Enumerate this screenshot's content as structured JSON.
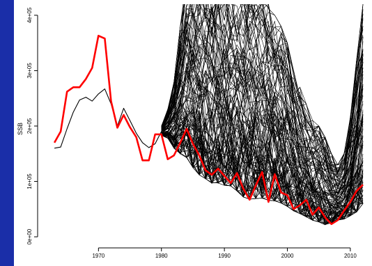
{
  "chart_data": {
    "type": "line",
    "title": "",
    "xlabel": "",
    "ylabel": "SSB",
    "xlim": [
      1961,
      2013
    ],
    "ylim": [
      -15000,
      420000
    ],
    "x_ticks": [
      1970,
      1980,
      1990,
      2000,
      2010
    ],
    "x_tick_labels": [
      "1970",
      "1980",
      "1990",
      "2000",
      "2010"
    ],
    "y_ticks": [
      0,
      100000,
      200000,
      300000,
      400000
    ],
    "y_tick_labels": [
      "0e+00",
      "1e+05",
      "2e+05",
      "3e+05",
      "4e+05"
    ],
    "grid": false,
    "legend": "none",
    "series": [
      {
        "color": "#000000",
        "years": [
          1963,
          1964,
          1965,
          1966,
          1967,
          1968,
          1969,
          1970,
          1971,
          1972,
          1973,
          1974,
          1975,
          1976,
          1977,
          1978,
          1979,
          1980
        ],
        "values": [
          160000,
          162000,
          195000,
          225000,
          247000,
          252000,
          245000,
          258000,
          267000,
          240000,
          200000,
          232000,
          210000,
          187000,
          170000,
          161000,
          168000,
          190000
        ]
      },
      {
        "color": "#ff0000",
        "years": [
          1963,
          1964,
          1965,
          1966,
          1967,
          1968,
          1969,
          1970,
          1971,
          1972,
          1973,
          1974,
          1975,
          1976,
          1977,
          1978,
          1979,
          1980,
          1981,
          1982,
          1983,
          1984,
          1985,
          1986,
          1987,
          1988,
          1989,
          1990,
          1991,
          1992,
          1993,
          1994,
          1995,
          1996,
          1997,
          1998,
          1999,
          2000,
          2001,
          2002,
          2003,
          2004,
          2005,
          2006,
          2007,
          2008,
          2009,
          2010,
          2011,
          2012
        ],
        "values": [
          170000,
          190000,
          262000,
          270000,
          270000,
          285000,
          305000,
          363000,
          358000,
          245000,
          197000,
          220000,
          198000,
          180000,
          138000,
          138000,
          185000,
          185000,
          140000,
          147000,
          170000,
          195000,
          168000,
          147000,
          120000,
          112000,
          123000,
          110000,
          97000,
          115000,
          87000,
          67000,
          93000,
          117000,
          63000,
          113000,
          80000,
          75000,
          50000,
          57000,
          67000,
          40000,
          53000,
          35000,
          23000,
          30000,
          47000,
          63000,
          83000,
          94000
        ]
      }
    ],
    "ensemble": {
      "color": "#000000",
      "count": 120,
      "years": [
        1980,
        1981,
        1982,
        1983,
        1984,
        1985,
        1986,
        1987,
        1988,
        1989,
        1990,
        1991,
        1992,
        1993,
        1994,
        1995,
        1996,
        1997,
        1998,
        1999,
        2000,
        2001,
        2002,
        2003,
        2004,
        2005,
        2006,
        2007,
        2008,
        2009,
        2010,
        2011,
        2012
      ],
      "lower": [
        183000,
        178000,
        160000,
        150000,
        143000,
        125000,
        112000,
        105000,
        97000,
        97000,
        93000,
        92000,
        83000,
        72000,
        68000,
        69000,
        70000,
        66000,
        65000,
        61000,
        55000,
        47000,
        42000,
        36000,
        30000,
        27000,
        22000,
        25000,
        30000,
        32000,
        38000,
        45000,
        60000
      ],
      "upper": [
        200000,
        230000,
        280000,
        380000,
        470000,
        480000,
        490000,
        480000,
        470000,
        470000,
        460000,
        450000,
        450000,
        440000,
        430000,
        430000,
        430000,
        420000,
        400000,
        380000,
        350000,
        300000,
        270000,
        240000,
        210000,
        200000,
        180000,
        150000,
        130000,
        150000,
        220000,
        320000,
        420000
      ]
    }
  }
}
